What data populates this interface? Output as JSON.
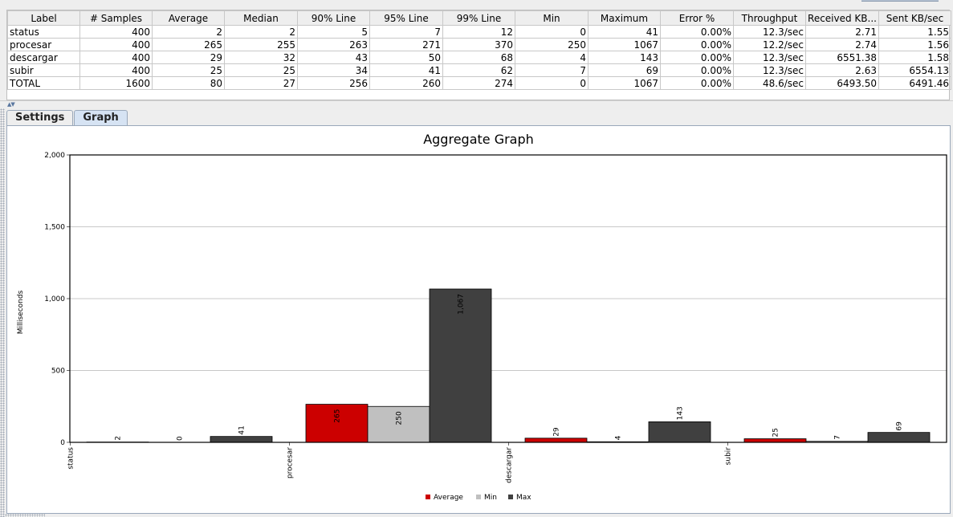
{
  "table": {
    "columns": [
      "Label",
      "# Samples",
      "Average",
      "Median",
      "90% Line",
      "95% Line",
      "99% Line",
      "Min",
      "Maximum",
      "Error %",
      "Throughput",
      "Received KB...",
      "Sent KB/sec"
    ],
    "rows": [
      [
        "status",
        "400",
        "2",
        "2",
        "5",
        "7",
        "12",
        "0",
        "41",
        "0.00%",
        "12.3/sec",
        "2.71",
        "1.55"
      ],
      [
        "procesar",
        "400",
        "265",
        "255",
        "263",
        "271",
        "370",
        "250",
        "1067",
        "0.00%",
        "12.2/sec",
        "2.74",
        "1.56"
      ],
      [
        "descargar",
        "400",
        "29",
        "32",
        "43",
        "50",
        "68",
        "4",
        "143",
        "0.00%",
        "12.3/sec",
        "6551.38",
        "1.58"
      ],
      [
        "subir",
        "400",
        "25",
        "25",
        "34",
        "41",
        "62",
        "7",
        "69",
        "0.00%",
        "12.3/sec",
        "2.63",
        "6554.13"
      ],
      [
        "TOTAL",
        "1600",
        "80",
        "27",
        "256",
        "260",
        "274",
        "0",
        "1067",
        "0.00%",
        "48.6/sec",
        "6493.50",
        "6491.46"
      ]
    ]
  },
  "tabs": [
    {
      "label": "Settings",
      "active": false
    },
    {
      "label": "Graph",
      "active": true
    }
  ],
  "chart_data": {
    "type": "bar",
    "title": "Aggregate Graph",
    "ylabel": "Milliseconds",
    "xlabel": "",
    "ylim": [
      0,
      2000
    ],
    "yticks": [
      "0",
      "500",
      "1,000",
      "1,500",
      "2,000"
    ],
    "ytick_values": [
      0,
      500,
      1000,
      1500,
      2000
    ],
    "categories": [
      "status",
      "procesar",
      "descargar",
      "subir"
    ],
    "series": [
      {
        "name": "Average",
        "values": [
          2,
          265,
          29,
          25
        ],
        "labels": [
          "2",
          "265",
          "29",
          "25"
        ],
        "color": "#cc0000"
      },
      {
        "name": "Min",
        "values": [
          0,
          250,
          4,
          7
        ],
        "labels": [
          "0",
          "250",
          "4",
          "7"
        ],
        "color": "#c0c0c0"
      },
      {
        "name": "Max",
        "values": [
          41,
          1067,
          143,
          69
        ],
        "labels": [
          "41",
          "1,067",
          "143",
          "69"
        ],
        "color": "#404040"
      }
    ],
    "grid": true,
    "legend": "bottom"
  },
  "colors": {
    "average": "#cc0000",
    "min": "#c0c0c0",
    "max": "#404040",
    "tab_active": "#d6e3f3"
  }
}
